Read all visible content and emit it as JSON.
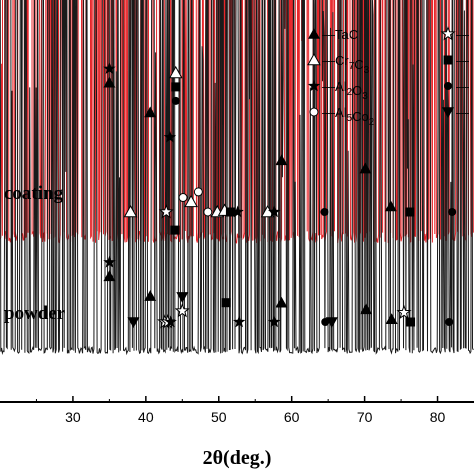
{
  "chart_data": {
    "type": "line",
    "xlabel": "2θ(deg.)",
    "xlim": [
      20,
      85
    ],
    "x_ticks": [
      30,
      40,
      50,
      60,
      70,
      80
    ],
    "x_tick_labels": [
      "30",
      "40",
      "50",
      "60",
      "70",
      "80"
    ],
    "grid": false,
    "series": [
      {
        "name": "coating",
        "color": "#e8262a",
        "baseline_level": "upper",
        "peaks": [
          {
            "x": 35.0,
            "height": 0.85
          },
          {
            "x": 40.6,
            "height": 0.67
          },
          {
            "x": 43.3,
            "height": 0.52
          },
          {
            "x": 44.1,
            "height": 0.74
          },
          {
            "x": 45.0,
            "height": 0.18
          },
          {
            "x": 46.3,
            "height": 0.15
          },
          {
            "x": 47.3,
            "height": 0.22
          },
          {
            "x": 49.5,
            "height": 0.12
          },
          {
            "x": 50.6,
            "height": 0.14
          },
          {
            "x": 58.6,
            "height": 0.38
          },
          {
            "x": 70.1,
            "height": 0.33
          },
          {
            "x": 73.6,
            "height": 0.1
          },
          {
            "x": 75.3,
            "height": 0.08
          },
          {
            "x": 81.6,
            "height": 0.11
          }
        ]
      },
      {
        "name": "powder",
        "color": "#1a1a1a",
        "baseline_level": "lower",
        "peaks": [
          {
            "x": 35.0,
            "height": 0.38
          },
          {
            "x": 40.6,
            "height": 0.26
          },
          {
            "x": 42.9,
            "height": 0.12
          },
          {
            "x": 44.0,
            "height": 0.66
          },
          {
            "x": 45.0,
            "height": 0.17
          },
          {
            "x": 51.0,
            "height": 0.22
          },
          {
            "x": 52.6,
            "height": 0.07
          },
          {
            "x": 57.6,
            "height": 0.08
          },
          {
            "x": 58.6,
            "height": 0.22
          },
          {
            "x": 70.2,
            "height": 0.18
          },
          {
            "x": 73.7,
            "height": 0.12
          },
          {
            "x": 75.4,
            "height": 0.16
          },
          {
            "x": 81.6,
            "height": 0.1
          }
        ]
      }
    ],
    "annotations": [
      {
        "series": "coating",
        "x": 35.0,
        "symbols": [
          "star",
          "triangle"
        ]
      },
      {
        "series": "coating",
        "x": 40.6,
        "symbols": [
          "triangle"
        ]
      },
      {
        "series": "coating",
        "x": 43.3,
        "symbols": [
          "star"
        ]
      },
      {
        "series": "coating",
        "x": 44.1,
        "symbols": [
          "open-triangle",
          "square",
          "circle"
        ]
      },
      {
        "series": "coating",
        "x": 37.9,
        "symbols": [
          "open-triangle"
        ]
      },
      {
        "series": "coating",
        "x": 42.8,
        "symbols": [
          "open-star"
        ]
      },
      {
        "series": "coating",
        "x": 45.1,
        "symbols": [
          "open-circle"
        ]
      },
      {
        "series": "coating",
        "x": 46.2,
        "symbols": [
          "open-triangle"
        ]
      },
      {
        "series": "coating",
        "x": 47.2,
        "symbols": [
          "open-circle"
        ]
      },
      {
        "series": "coating",
        "x": 48.5,
        "symbols": [
          "open-circle"
        ]
      },
      {
        "series": "coating",
        "x": 49.8,
        "symbols": [
          "open-triangle"
        ]
      },
      {
        "series": "coating",
        "x": 50.8,
        "symbols": [
          "open-triangle"
        ]
      },
      {
        "series": "coating",
        "x": 51.6,
        "symbols": [
          "square"
        ]
      },
      {
        "series": "coating",
        "x": 52.6,
        "symbols": [
          "star"
        ]
      },
      {
        "series": "coating",
        "x": 56.7,
        "symbols": [
          "open-triangle"
        ]
      },
      {
        "series": "coating",
        "x": 57.6,
        "symbols": [
          "star"
        ]
      },
      {
        "series": "coating",
        "x": 58.6,
        "symbols": [
          "triangle"
        ]
      },
      {
        "series": "coating",
        "x": 64.5,
        "symbols": [
          "circle"
        ]
      },
      {
        "series": "coating",
        "x": 70.1,
        "symbols": [
          "triangle"
        ]
      },
      {
        "series": "coating",
        "x": 73.6,
        "symbols": [
          "triangle"
        ]
      },
      {
        "series": "coating",
        "x": 76.2,
        "symbols": [
          "square"
        ]
      },
      {
        "series": "coating",
        "x": 82.0,
        "symbols": [
          "circle"
        ]
      },
      {
        "series": "powder",
        "x": 35.0,
        "symbols": [
          "star",
          "triangle"
        ]
      },
      {
        "series": "powder",
        "x": 38.3,
        "symbols": [
          "inverted-triangle"
        ]
      },
      {
        "series": "powder",
        "x": 40.6,
        "symbols": [
          "triangle"
        ]
      },
      {
        "series": "powder",
        "x": 42.6,
        "symbols": [
          "open-star"
        ]
      },
      {
        "series": "powder",
        "x": 43.0,
        "symbols": [
          "open-star"
        ]
      },
      {
        "series": "powder",
        "x": 43.4,
        "symbols": [
          "star"
        ]
      },
      {
        "series": "powder",
        "x": 44.0,
        "symbols": [
          "square"
        ]
      },
      {
        "series": "powder",
        "x": 45.0,
        "symbols": [
          "inverted-triangle",
          "open-star"
        ]
      },
      {
        "series": "powder",
        "x": 51.0,
        "symbols": [
          "square"
        ]
      },
      {
        "series": "powder",
        "x": 52.8,
        "symbols": [
          "star"
        ]
      },
      {
        "series": "powder",
        "x": 57.6,
        "symbols": [
          "star"
        ]
      },
      {
        "series": "powder",
        "x": 58.6,
        "symbols": [
          "triangle"
        ]
      },
      {
        "series": "powder",
        "x": 64.6,
        "symbols": [
          "circle"
        ]
      },
      {
        "series": "powder",
        "x": 65.5,
        "symbols": [
          "inverted-triangle"
        ]
      },
      {
        "series": "powder",
        "x": 70.2,
        "symbols": [
          "triangle"
        ]
      },
      {
        "series": "powder",
        "x": 73.7,
        "symbols": [
          "triangle"
        ]
      },
      {
        "series": "powder",
        "x": 75.4,
        "symbols": [
          "open-star"
        ]
      },
      {
        "series": "powder",
        "x": 76.3,
        "symbols": [
          "square"
        ]
      },
      {
        "series": "powder",
        "x": 81.6,
        "symbols": [
          "circle"
        ]
      }
    ],
    "legend": {
      "placement": "top-right",
      "entries": [
        {
          "symbol": "triangle",
          "prefix": "—",
          "name": "TaC",
          "sub": ""
        },
        {
          "symbol": "open-star",
          "prefix": "—",
          "name": "",
          "sub": ""
        },
        {
          "symbol": "open-triangle",
          "prefix": "—",
          "name": "Cr",
          "sub": "7",
          "name2": "C",
          "sub2": "3"
        },
        {
          "symbol": "square",
          "prefix": "—",
          "name": "",
          "sub": ""
        },
        {
          "symbol": "star",
          "prefix": "—",
          "name": "Al",
          "sub": "2",
          "name2": "O",
          "sub2": "3"
        },
        {
          "symbol": "circle",
          "prefix": "—",
          "name": "",
          "sub": ""
        },
        {
          "symbol": "open-circle",
          "prefix": "—",
          "name": "Al",
          "sub": "5",
          "name2": "Co",
          "sub2": "2"
        },
        {
          "symbol": "inverted-triangle",
          "prefix": "—",
          "name": "",
          "sub": ""
        }
      ]
    }
  },
  "labels": {
    "coating": "coating",
    "powder": "powder",
    "xlabel": "2θ(deg.)"
  }
}
